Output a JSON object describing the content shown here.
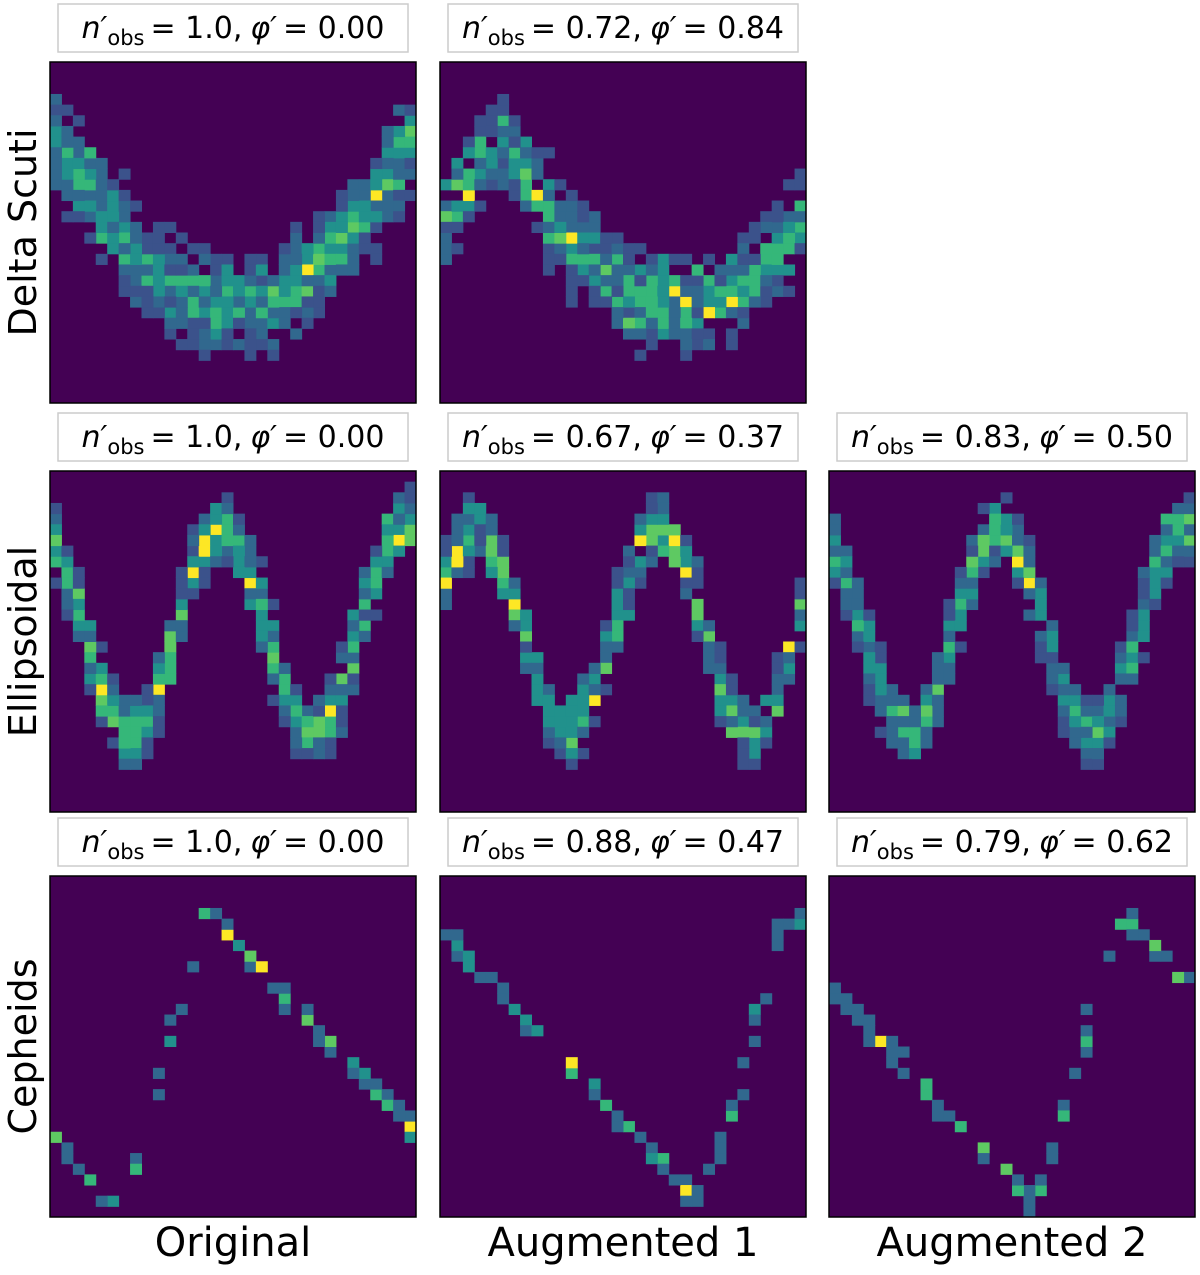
{
  "rows": [
    {
      "label": "Delta Scuti",
      "panels": [
        {
          "n": "n′",
          "sub": "obs",
          "n_value": "= 1.0,",
          "phi": "φ′",
          "phi_value": "= 0.00"
        },
        {
          "n": "n′",
          "sub": "obs",
          "n_value": "= 0.72,",
          "phi": "φ′",
          "phi_value": "= 0.84"
        }
      ]
    },
    {
      "label": "Ellipsoidal",
      "panels": [
        {
          "n": "n′",
          "sub": "obs",
          "n_value": "= 1.0,",
          "phi": "φ′",
          "phi_value": "= 0.00"
        },
        {
          "n": "n′",
          "sub": "obs",
          "n_value": "= 0.67,",
          "phi": "φ′",
          "phi_value": "= 0.37"
        },
        {
          "n": "n′",
          "sub": "obs",
          "n_value": "= 0.83,",
          "phi": "φ′",
          "phi_value": "= 0.50"
        }
      ]
    },
    {
      "label": "Cepheids",
      "panels": [
        {
          "n": "n′",
          "sub": "obs",
          "n_value": "= 1.0,",
          "phi": "φ′",
          "phi_value": "= 0.00"
        },
        {
          "n": "n′",
          "sub": "obs",
          "n_value": "= 0.88,",
          "phi": "φ′",
          "phi_value": "= 0.47"
        },
        {
          "n": "n′",
          "sub": "obs",
          "n_value": "= 0.79,",
          "phi": "φ′",
          "phi_value": "= 0.62"
        }
      ]
    }
  ],
  "columns": [
    "Original",
    "Augmented 1",
    "Augmented 2"
  ]
}
